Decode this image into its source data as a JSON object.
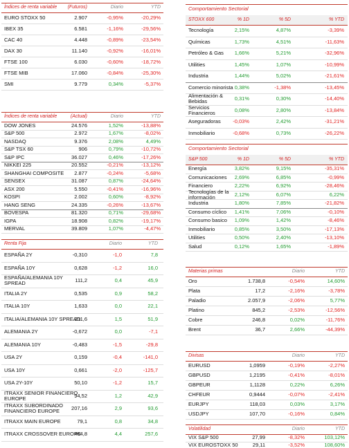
{
  "left": [
    {
      "header": [
        "Índices de renta variable",
        "(Futuros)",
        "Diario",
        "YTD"
      ],
      "groups": [
        [
          [
            "EURO STOXX 50",
            "2.907",
            "-0,95%",
            "-20,29%"
          ],
          [
            "IBEX 35",
            "6.581",
            "-1,16%",
            "-29,56%"
          ],
          [
            "CAC 40",
            "4.448",
            "-0,89%",
            "-23,54%"
          ],
          [
            "DAX 30",
            "11.140",
            "-0,92%",
            "-16,01%"
          ],
          [
            "FTSE 100",
            "6.030",
            "-0,60%",
            "-18,72%"
          ],
          [
            "FTSE MIB",
            "17.060",
            "-0,84%",
            "-25,30%"
          ],
          [
            "SMI",
            "9.779",
            "0,34%",
            "-5,37%"
          ]
        ]
      ]
    },
    {
      "header": [
        "Índices de renta variable",
        "(Actual)",
        "Diario",
        "YTD"
      ],
      "groups": [
        [
          [
            "DOW JONES",
            "24.576",
            "1,52%",
            "-13,88%"
          ],
          [
            "S&P 500",
            "2.972",
            "1,67%",
            "-8,02%"
          ],
          [
            "NASDAQ",
            "9.376",
            "2,08%",
            "4,49%"
          ],
          [
            "S&P TSX 60",
            "906",
            "0,79%",
            "-10,72%"
          ],
          [
            "S&P IPC",
            "36.027",
            "0,46%",
            "-17,26%"
          ]
        ],
        [
          [
            "NIKKEI 225",
            "20.552",
            "-0,21%",
            "-13,12%"
          ],
          [
            "SHANGHAI COMPOSITE",
            "2.877",
            "-0,24%",
            "-5,68%"
          ],
          [
            "SENSEX",
            "31.087",
            "0,87%",
            "-24,64%"
          ],
          [
            "ASX 200",
            "5.550",
            "-0,41%",
            "-16,96%"
          ],
          [
            "KOSPI",
            "2.002",
            "0,60%",
            "-8,92%"
          ],
          [
            "HANG SENG",
            "24.335",
            "-0,26%",
            "-13,67%"
          ]
        ],
        [
          [
            "BOVESPA",
            "81.320",
            "0,71%",
            "-29,68%"
          ],
          [
            "IGPA",
            "18.908",
            "0,82%",
            "-19,17%"
          ],
          [
            "MERVAL",
            "39.809",
            "1,07%",
            "-4,47%"
          ]
        ]
      ]
    },
    {
      "header": [
        "Renta Fija",
        "Diario",
        "YTD"
      ],
      "groups": [
        [
          [
            "ESPAÑA 2Y",
            "-0,310",
            "-1,0",
            "7,8"
          ],
          [
            "ESPAÑA 10Y",
            "0,628",
            "-1,2",
            "16,0"
          ],
          [
            "ESPAÑA/ALEMANIA 10Y SPREAD",
            "111,2",
            "0,4",
            "45,9"
          ],
          [
            "ITALIA 2Y",
            "0,535",
            "0,9",
            "58,2"
          ],
          [
            "ITALIA 10Y",
            "1,633",
            "0,0",
            "22,1"
          ],
          [
            "ITALIA/ALEMANIA 10Y SPREAD",
            "211,6",
            "1,5",
            "51,9"
          ],
          [
            "ALEMANIA 2Y",
            "-0,672",
            "0,0",
            "-7,1"
          ],
          [
            "ALEMANIA 10Y",
            "-0,483",
            "-1,5",
            "-29,8"
          ],
          [
            "USA 2Y",
            "0,159",
            "-0,4",
            "-141,0"
          ],
          [
            "USA 10Y",
            "0,661",
            "-2,0",
            "-125,7"
          ],
          [
            "USA 2Y-10Y",
            "50,10",
            "-1,2",
            "15,7"
          ],
          [
            "ITRAXX SENIOR FINANCIERO EUROPE",
            "94,52",
            "1,2",
            "42,9"
          ],
          [
            "ITRAXX SUBORDINADO FINANCIERO EUROPE",
            "207,16",
            "2,9",
            "93,6"
          ],
          [
            "ITRAXX MAIN EUROPE",
            "79,1",
            "0,8",
            "34,8"
          ],
          [
            "ITRAXX CROSSOVER EUROPE",
            "464,8",
            "4,4",
            "257,6"
          ]
        ]
      ]
    }
  ],
  "right": [
    {
      "title": "Comportamiento Sectorial",
      "header": [
        "STOXX 600",
        "% 1D",
        "% 5D",
        "% YTD"
      ],
      "groups": [
        [
          [
            "Tecnología",
            "2,15%",
            "4,87%",
            "-3,39%"
          ],
          [
            "Químicas",
            "1,73%",
            "4,51%",
            "-11,63%"
          ],
          [
            "Petróleo & Gas",
            "1,66%",
            "5,21%",
            "-32,96%"
          ],
          [
            "Utilities",
            "1,45%",
            "1,07%",
            "-10,99%"
          ],
          [
            "Industria",
            "1,44%",
            "5,02%",
            "-21,61%"
          ]
        ],
        [
          [
            "Comercio minorista",
            "0,38%",
            "-1,38%",
            "-13,45%"
          ],
          [
            "Alimentación & Bebidas",
            "0,31%",
            "0,30%",
            "-14,40%"
          ],
          [
            "Servicios Financieros",
            "0,08%",
            "2,80%",
            "-13,84%"
          ],
          [
            "Aseguradoras",
            "-0,03%",
            "2,42%",
            "-31,21%"
          ],
          [
            "Inmobiliario",
            "-0,68%",
            "0,73%",
            "-26,22%"
          ]
        ]
      ]
    },
    {
      "title": "Comportamiento Sectorial",
      "header": [
        "S&P 500",
        "% 1D",
        "% 5D",
        "% YTD"
      ],
      "groups": [
        [
          [
            "Energía",
            "3,82%",
            "9,15%",
            "-35,31%"
          ],
          [
            "Comunicaciones",
            "2,69%",
            "6,85%",
            "-0,99%"
          ],
          [
            "Financiero",
            "2,22%",
            "6,92%",
            "-28,46%"
          ],
          [
            "Tecnologías de la información",
            "2,12%",
            "6,07%",
            "6,22%"
          ],
          [
            "Industria",
            "1,80%",
            "7,85%",
            "-21,82%"
          ]
        ],
        [
          [
            "Consumo cíclico",
            "1,41%",
            "7,06%",
            "-0,10%"
          ],
          [
            "Consumo basico",
            "1,09%",
            "1,42%",
            "-8,46%"
          ],
          [
            "Inmobiliario",
            "0,85%",
            "3,50%",
            "-17,13%"
          ],
          [
            "Utilities",
            "0,50%",
            "2,40%",
            "-13,10%"
          ],
          [
            "Salud",
            "0,12%",
            "1,65%",
            "-1,89%"
          ]
        ]
      ]
    },
    {
      "header": [
        "Materias primas",
        "Diario",
        "YTD"
      ],
      "groups": [
        [
          [
            "Oro",
            "1.738,8",
            "-0,54%",
            "14,60%"
          ],
          [
            "Plata",
            "17,2",
            "-2,16%",
            "-3,78%"
          ],
          [
            "Paladio",
            "2.057,9",
            "-2,06%",
            "5,77%"
          ],
          [
            "Platino",
            "845,2",
            "-2,53%",
            "-12,56%"
          ],
          [
            "Cobre",
            "246,8",
            "0,02%",
            "-11,76%"
          ],
          [
            "Brent",
            "36,7",
            "2,66%",
            "-44,39%"
          ]
        ]
      ]
    },
    {
      "header": [
        "Divisas",
        "Diario",
        "YTD"
      ],
      "groups": [
        [
          [
            "EURUSD",
            "1,0959",
            "-0,19%",
            "-2,27%"
          ],
          [
            "GBPUSD",
            "1,2195",
            "-0,41%",
            "-8,01%"
          ],
          [
            "GBPEUR",
            "1,1128",
            "0,22%",
            "6,26%"
          ],
          [
            "CHFEUR",
            "0,9444",
            "-0,07%",
            "-2,41%"
          ],
          [
            "EURJPY",
            "118,03",
            "0,03%",
            "3,17%"
          ],
          [
            "USDJPY",
            "107,70",
            "-0,16%",
            "0,84%"
          ]
        ]
      ]
    },
    {
      "header": [
        "Volatilidad",
        "Diario",
        "YTD"
      ],
      "groups": [
        [
          [
            "VIX S&P 500",
            "27,99",
            "-8,32%",
            "103,12%"
          ],
          [
            "VIX EUROSTOXX 50",
            "29,11",
            "-3,52%",
            "108,60%"
          ]
        ]
      ]
    }
  ]
}
